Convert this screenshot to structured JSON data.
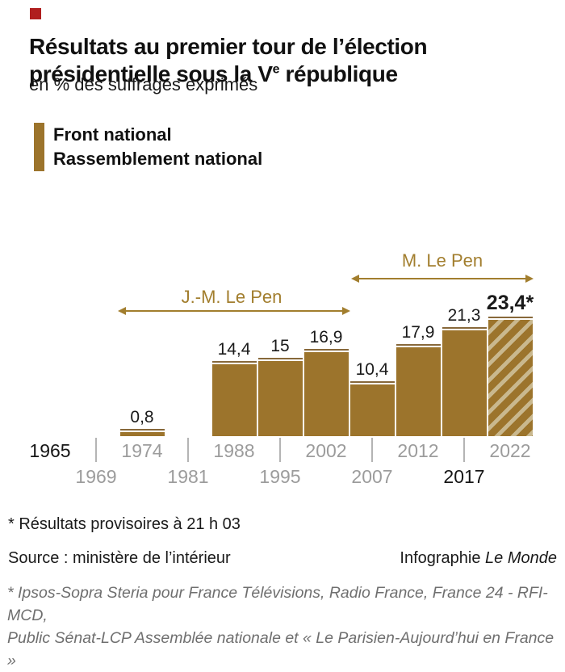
{
  "brand": {
    "red_square_color": "#b01f1f"
  },
  "header": {
    "title_line1": "Résultats au premier tour de l’élection",
    "title_line2_pre": "présidentielle sous la V",
    "title_line2_sup": "e",
    "title_line2_post": " république",
    "subtitle": "en % des suffrages exprimés"
  },
  "legend": {
    "line1": "Front national",
    "line2": "Rassemblement national"
  },
  "chart_data": {
    "type": "bar",
    "title": "Résultats au premier tour de l’élection présidentielle sous la Ve république",
    "ylabel": "% des suffrages exprimés",
    "series_name": "Front national / Rassemblement national",
    "categories": [
      "1974",
      "1988",
      "1995",
      "2002",
      "2007",
      "2012",
      "2017",
      "2022"
    ],
    "values": [
      0.8,
      14.4,
      15,
      16.9,
      10.4,
      17.9,
      21.3,
      23.4
    ],
    "bars": [
      {
        "year": "1974",
        "value": 0.8,
        "label": "0,8",
        "hatched": false,
        "bold": false
      },
      {
        "year": "1988",
        "value": 14.4,
        "label": "14,4",
        "hatched": false,
        "bold": false
      },
      {
        "year": "1995",
        "value": 15,
        "label": "15",
        "hatched": false,
        "bold": false
      },
      {
        "year": "2002",
        "value": 16.9,
        "label": "16,9",
        "hatched": false,
        "bold": false
      },
      {
        "year": "2007",
        "value": 10.4,
        "label": "10,4",
        "hatched": false,
        "bold": false
      },
      {
        "year": "2012",
        "value": 17.9,
        "label": "17,9",
        "hatched": false,
        "bold": false
      },
      {
        "year": "2017",
        "value": 21.3,
        "label": "21,3",
        "hatched": false,
        "bold": false
      },
      {
        "year": "2022",
        "value": 23.4,
        "label": "23,4*",
        "hatched": true,
        "bold": true
      }
    ],
    "timeline": [
      {
        "year": "1965",
        "row": 1,
        "emphasis": true
      },
      {
        "year": "1969",
        "row": 2,
        "emphasis": false
      },
      {
        "year": "1974",
        "row": 1,
        "emphasis": false
      },
      {
        "year": "1981",
        "row": 2,
        "emphasis": false
      },
      {
        "year": "1988",
        "row": 1,
        "emphasis": false
      },
      {
        "year": "1995",
        "row": 2,
        "emphasis": false
      },
      {
        "year": "2002",
        "row": 1,
        "emphasis": false
      },
      {
        "year": "2007",
        "row": 2,
        "emphasis": false
      },
      {
        "year": "2012",
        "row": 1,
        "emphasis": false
      },
      {
        "year": "2017",
        "row": 2,
        "emphasis": true
      },
      {
        "year": "2022",
        "row": 1,
        "emphasis": false
      }
    ],
    "annotations": [
      {
        "label": "J.-M. Le Pen"
      },
      {
        "label": "M. Le Pen"
      }
    ],
    "colors": {
      "bar": "#9c742c",
      "cap": "#87683a",
      "hatch_light": "#c9b88e",
      "annotation": "#a27e2e",
      "axis_gray": "#9c9c9c",
      "axis_black": "#161616",
      "tick": "#b4b4b4",
      "value_text": "#1a1a1a"
    }
  },
  "footer": {
    "note": "* Résultats provisoires à 21 h 03",
    "source": "Source : ministère de l’intérieur",
    "credit_pre": "Infographie ",
    "credit_brand": "Le Monde",
    "methodology_line1": "* Ipsos-Sopra Steria pour France Télévisions, Radio France, France 24 - RFI-MCD,",
    "methodology_line2": "Public Sénat-LCP Assemblée nationale et « Le Parisien-Aujourd’hui en France »"
  }
}
